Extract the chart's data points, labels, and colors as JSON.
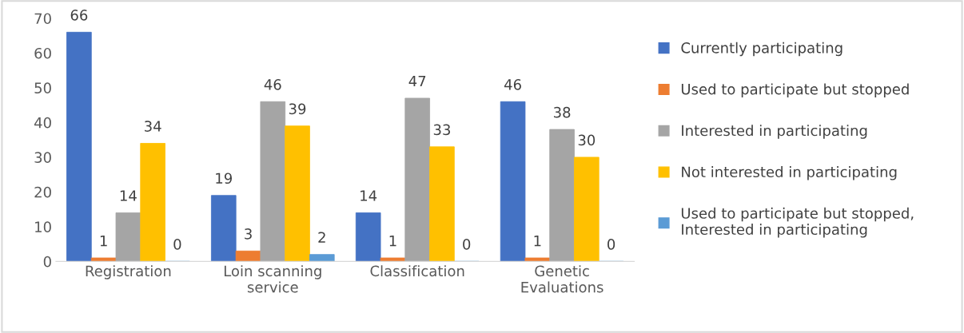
{
  "chart_data": {
    "type": "bar",
    "categories": [
      "Registration",
      "Loin scanning\nservice",
      "Classification",
      "Genetic\nEvaluations"
    ],
    "series": [
      {
        "name": "Currently participating",
        "color": "#4472c4",
        "values": [
          66,
          19,
          14,
          46
        ]
      },
      {
        "name": "Used to participate but stopped",
        "color": "#ed7d31",
        "values": [
          1,
          3,
          1,
          1
        ]
      },
      {
        "name": "Interested in participating",
        "color": "#a5a5a5",
        "values": [
          14,
          46,
          47,
          38
        ]
      },
      {
        "name": "Not interested in participating",
        "color": "#ffc000",
        "values": [
          34,
          39,
          33,
          30
        ]
      },
      {
        "name": "Used to participate but stopped,\nInterested in participating",
        "color": "#5b9bd5",
        "values": [
          0,
          2,
          0,
          0
        ],
        "value_labels": [
          "0",
          "2",
          "0",
          "0"
        ]
      }
    ],
    "ylim": [
      0,
      70
    ],
    "yticks": [
      0,
      10,
      20,
      30,
      40,
      50,
      60,
      70
    ],
    "data_labels": true,
    "legend": "right",
    "grid": false
  }
}
